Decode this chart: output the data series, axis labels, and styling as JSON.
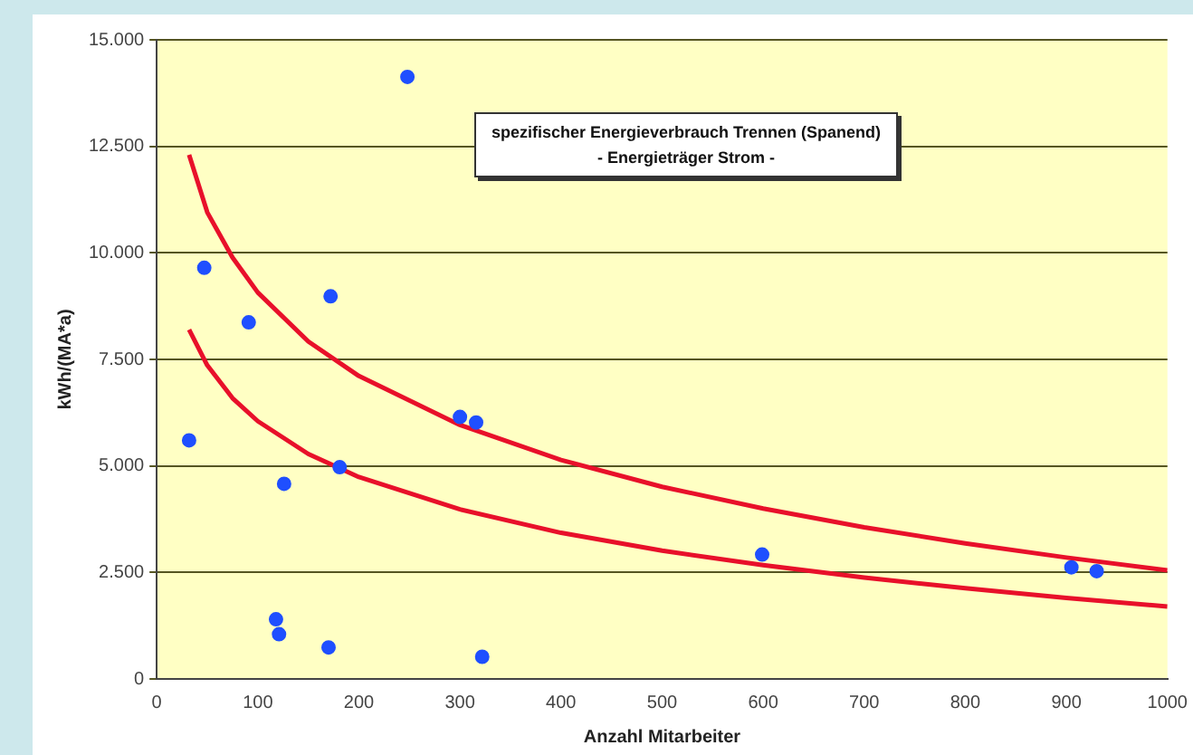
{
  "chart_data": {
    "type": "scatter",
    "title": "spezifischer Energieverbrauch Trennen (Spanend)",
    "subtitle": "- Energieträger Strom -",
    "xlabel": "Anzahl Mitarbeiter",
    "ylabel": "kWh/(MA*a)",
    "xlim": [
      0,
      1000
    ],
    "xticks": [
      0,
      100,
      200,
      300,
      400,
      500,
      600,
      700,
      800,
      900,
      1000
    ],
    "ylim": [
      0,
      15000
    ],
    "yticks": [
      0,
      {
        "value": 2500,
        "label": "2.500"
      },
      {
        "value": 5000,
        "label": "5.000"
      },
      {
        "value": 7500,
        "label": "7.500"
      },
      {
        "value": 10000,
        "label": "10.000"
      },
      {
        "value": 12500,
        "label": "12.500"
      },
      {
        "value": 15000,
        "label": "15.000"
      }
    ],
    "grid": "y",
    "legend": false,
    "marker": "circle",
    "series": [
      {
        "type": "scatter",
        "color": "#1f4fff",
        "x": [
          32,
          47,
          91,
          118,
          121,
          126,
          170,
          172,
          181,
          248,
          300,
          316,
          322,
          599,
          905,
          930
        ],
        "values": [
          5600,
          9650,
          8370,
          1400,
          1050,
          4580,
          740,
          8980,
          4970,
          14130,
          6150,
          6020,
          520,
          2920,
          2620,
          2530
        ]
      },
      {
        "type": "line",
        "color": "#e8102a",
        "marker": "none",
        "x": [
          32,
          50,
          75,
          100,
          150,
          200,
          300,
          400,
          500,
          600,
          700,
          800,
          900,
          1000
        ],
        "values": [
          12300,
          10950,
          9890,
          9070,
          7920,
          7110,
          5960,
          5140,
          4510,
          4000,
          3560,
          3180,
          2850,
          2550
        ]
      },
      {
        "type": "line",
        "color": "#e8102a",
        "marker": "none",
        "x": [
          32,
          50,
          75,
          100,
          150,
          200,
          300,
          400,
          500,
          600,
          700,
          800,
          900,
          1000
        ],
        "values": [
          8200,
          7360,
          6590,
          6050,
          5280,
          4740,
          3980,
          3430,
          3010,
          2670,
          2380,
          2130,
          1900,
          1700
        ]
      }
    ]
  }
}
